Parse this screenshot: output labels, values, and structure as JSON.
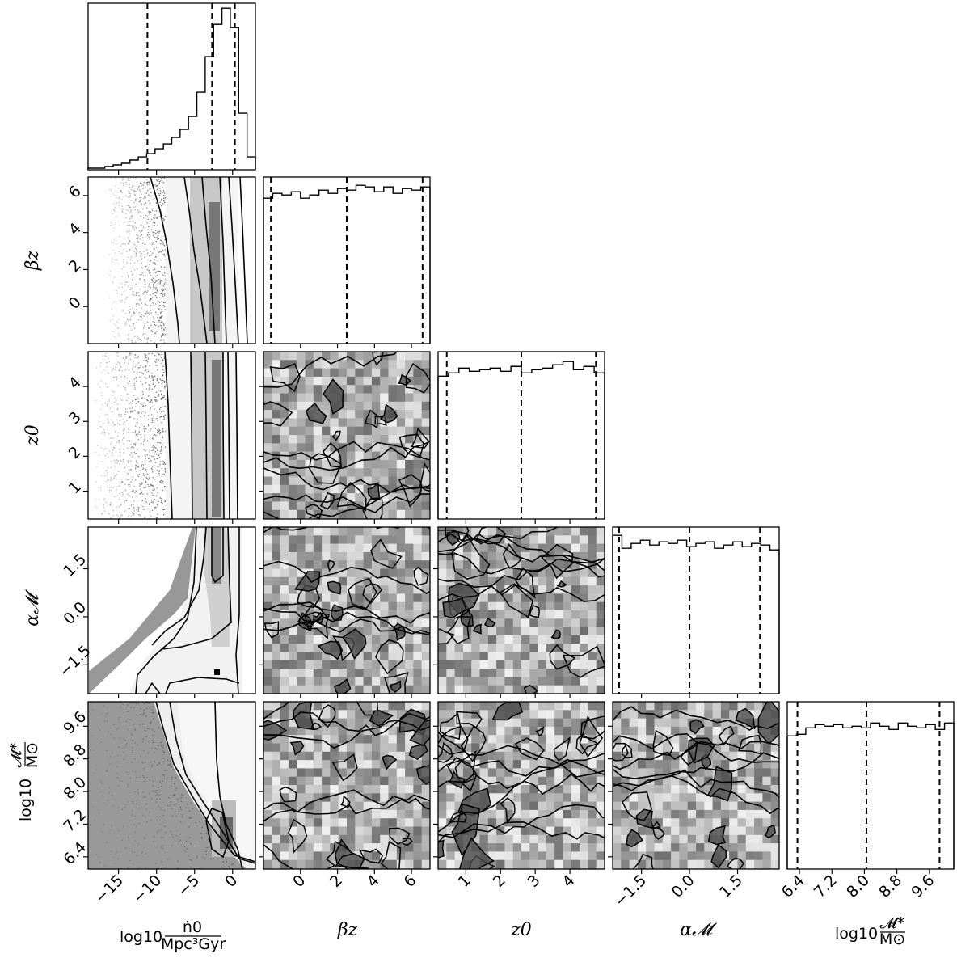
{
  "chart_data": {
    "type": "corner",
    "parameters": [
      {
        "key": "logn0",
        "ylabel_main": "",
        "xlabel_main": "log10",
        "xlabel_frac_num": "ṅ0",
        "xlabel_frac_den": "Mpc³Gyr"
      },
      {
        "key": "beta_z",
        "label": "βz"
      },
      {
        "key": "z0",
        "label": "z0"
      },
      {
        "key": "alpha_M",
        "label": "α𝓜"
      },
      {
        "key": "logM",
        "label_main": "log10",
        "label_frac_num": "𝓜*",
        "label_frac_den": "M⊙"
      }
    ],
    "ranges": {
      "logn0": [
        -19,
        3
      ],
      "beta_z": [
        -2,
        7
      ],
      "z0": [
        0.2,
        5
      ],
      "alpha_M": [
        -2.4,
        2.8
      ],
      "logM": [
        6.1,
        10.2
      ]
    },
    "ticks": {
      "logn0": [
        "-15",
        "-10",
        "-5",
        "0"
      ],
      "logn0_values": [
        -15,
        -10,
        -5,
        0
      ],
      "beta_z": [
        "0",
        "2",
        "4",
        "6"
      ],
      "beta_z_values": [
        0,
        2,
        4,
        6
      ],
      "z0": [
        "1",
        "2",
        "3",
        "4"
      ],
      "z0_values": [
        1,
        2,
        3,
        4
      ],
      "alpha_M": [
        "-1.5",
        "0.0",
        "1.5"
      ],
      "alpha_M_values": [
        -1.5,
        0,
        1.5
      ],
      "logM": [
        "6.4",
        "7.2",
        "8.0",
        "8.8",
        "9.6"
      ],
      "logM_values": [
        6.4,
        7.2,
        8.0,
        8.8,
        9.6
      ]
    },
    "quantiles": {
      "logn0": [
        -11.2,
        -2.7,
        0.3
      ],
      "beta_z": [
        -1.6,
        2.5,
        6.6
      ],
      "z0": [
        0.45,
        2.6,
        4.75
      ],
      "alpha_M": [
        -2.2,
        0.0,
        2.2
      ],
      "logM": [
        6.35,
        8.05,
        9.85
      ]
    },
    "histograms": {
      "logn0": [
        0.01,
        0.01,
        0.02,
        0.03,
        0.04,
        0.06,
        0.08,
        0.1,
        0.13,
        0.16,
        0.2,
        0.25,
        0.33,
        0.48,
        0.7,
        0.9,
        1.0,
        0.88,
        0.35,
        0.08
      ],
      "beta_z": [
        0.9,
        0.93,
        0.92,
        0.94,
        0.9,
        0.92,
        0.95,
        0.93,
        0.96,
        0.95,
        0.98,
        0.97,
        0.94,
        0.97,
        0.93,
        0.96,
        0.95,
        0.97
      ],
      "z0": [
        0.88,
        0.9,
        0.93,
        0.91,
        0.92,
        0.93,
        0.91,
        0.94,
        0.9,
        0.92,
        0.93,
        0.95,
        0.97,
        0.92,
        0.94,
        0.9
      ],
      "alpha_M": [
        0.98,
        0.9,
        0.93,
        0.95,
        0.92,
        0.94,
        0.93,
        0.95,
        0.91,
        0.93,
        0.94,
        0.9,
        0.92,
        0.94,
        0.91,
        0.93,
        0.92,
        0.89
      ],
      "logM": [
        0.82,
        0.83,
        0.87,
        0.89,
        0.88,
        0.89,
        0.87,
        0.88,
        0.87,
        0.9,
        0.88,
        0.86,
        0.9,
        0.88,
        0.87,
        0.89,
        0.86,
        0.9
      ]
    },
    "colors": {
      "line": "#000000",
      "scatter": "#555555",
      "fill_dark": "#333333",
      "fill_light": "#e6e6e6"
    }
  }
}
